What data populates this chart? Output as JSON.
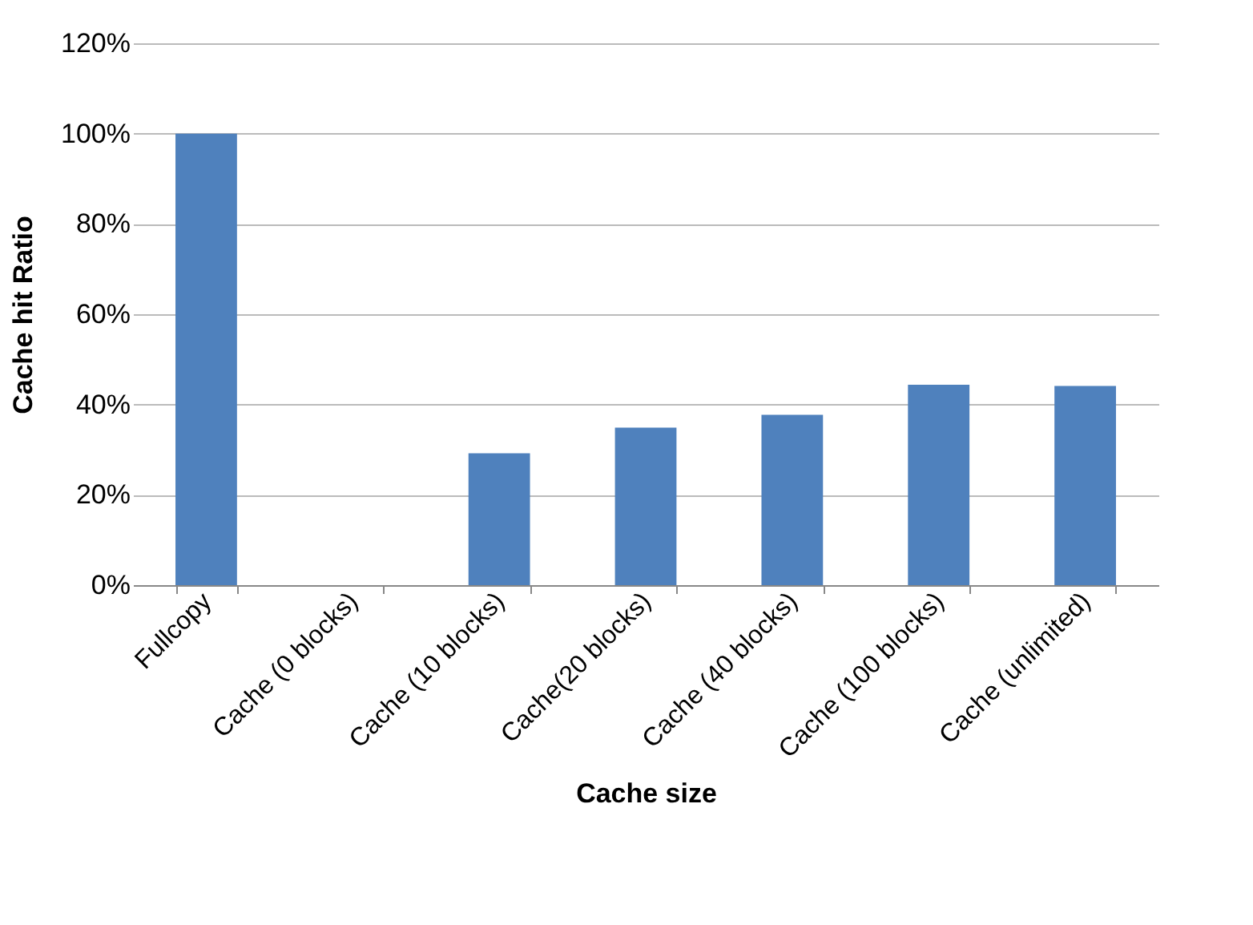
{
  "chart_data": {
    "type": "bar",
    "xlabel": "Cache size",
    "ylabel": "Cache hit Ratio",
    "categories": [
      "Fullcopy",
      "Cache (0 blocks)",
      "Cache (10 blocks)",
      "Cache(20 blocks)",
      "Cache (40 blocks)",
      "Cache (100 blocks)",
      "Cache (unlimited)"
    ],
    "values": [
      100,
      0,
      29.2,
      34.9,
      37.7,
      44.4,
      44.1
    ],
    "color": "#4f81bd",
    "ylim": [
      0,
      120
    ],
    "yticks": [
      {
        "value": 0,
        "label": "0%"
      },
      {
        "value": 20,
        "label": "20%"
      },
      {
        "value": 40,
        "label": "40%"
      },
      {
        "value": 60,
        "label": "60%"
      },
      {
        "value": 80,
        "label": "80%"
      },
      {
        "value": 100,
        "label": "100%"
      },
      {
        "value": 120,
        "label": "120%"
      }
    ],
    "grid": "y"
  }
}
